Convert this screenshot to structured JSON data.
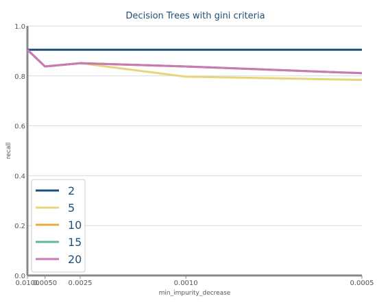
{
  "chart_data": {
    "type": "line",
    "title": "Decision Trees with gini criteria",
    "xlabel": "min_impurity_decrease",
    "ylabel": "recall",
    "x": [
      0.01,
      0.005,
      0.0025,
      0.001,
      0.0005
    ],
    "x_tick_labels": [
      "0.0100",
      "0.0050",
      "0.0025",
      "0.0010",
      "0.0005"
    ],
    "y_tick_labels": [
      "0.0",
      "0.2",
      "0.4",
      "0.6",
      "0.8",
      "1.0"
    ],
    "ylim": [
      0,
      1
    ],
    "x_scale": "reciprocal",
    "grid": "horizontal",
    "legend_position": "bottom-left",
    "series": [
      {
        "name": "2",
        "color": "#1a4f80",
        "values": [
          0.905,
          0.905,
          0.905,
          0.905,
          0.905
        ]
      },
      {
        "name": "5",
        "color": "#e8d47a",
        "values": [
          0.905,
          0.838,
          0.851,
          0.797,
          0.784
        ]
      },
      {
        "name": "10",
        "color": "#e8a840",
        "values": [
          0.905,
          0.838,
          0.851,
          0.838,
          0.811
        ]
      },
      {
        "name": "15",
        "color": "#5bb89a",
        "values": [
          0.905,
          0.838,
          0.851,
          0.838,
          0.811
        ]
      },
      {
        "name": "20",
        "color": "#cc78b4",
        "values": [
          0.905,
          0.838,
          0.851,
          0.838,
          0.811
        ]
      }
    ]
  }
}
